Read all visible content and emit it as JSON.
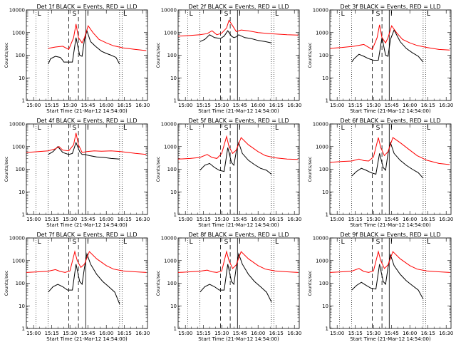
{
  "figure": {
    "time_ticks": [
      "15:00",
      "15:15",
      "15:30",
      "15:45",
      "16:00",
      "16:15",
      "16:30"
    ],
    "y_ticks": [
      "1",
      "10",
      "100",
      "1000",
      "10000"
    ],
    "ylabel": "Counts/sec",
    "xlabel": "Start Time (21-Mar-12 14:54:00)",
    "markers": [
      "L",
      "S",
      "I",
      "L"
    ],
    "colors": {
      "events": "#000000",
      "lld": "#ff0000"
    }
  },
  "chart_data": [
    {
      "type": "line",
      "title": "Det 1f BLACK = Events, RED = LLD",
      "xlabel": "Start Time (21-Mar-12 14:54:00)",
      "ylabel": "Counts/sec",
      "ylim": [
        1,
        10000
      ],
      "yscale": "log",
      "x_range_min": [
        0,
        100
      ],
      "markers_min": {
        "L_start": 8,
        "dotted": 18,
        "dashed_1": 35,
        "dashed_2": 43,
        "solid": 49,
        "dotted_2": 77,
        "L_end": 79
      },
      "series": [
        {
          "name": "Events",
          "color": "#000000",
          "x": [
            18,
            20,
            24,
            28,
            30,
            31,
            38,
            41,
            44,
            46,
            48,
            50,
            53,
            57,
            62,
            66,
            70,
            74,
            77
          ],
          "y": [
            40,
            70,
            90,
            80,
            60,
            50,
            50,
            600,
            100,
            90,
            500,
            1200,
            400,
            250,
            150,
            120,
            100,
            80,
            40
          ]
        },
        {
          "name": "LLD",
          "color": "#ff0000",
          "x": [
            18,
            24,
            30,
            35,
            39,
            41,
            43,
            46,
            48,
            51,
            55,
            60,
            66,
            72,
            80,
            90,
            99
          ],
          "y": [
            200,
            230,
            250,
            180,
            600,
            2400,
            600,
            350,
            600,
            2000,
            1000,
            500,
            350,
            260,
            210,
            180,
            160
          ]
        }
      ]
    },
    {
      "type": "line",
      "title": "Det 2f BLACK = Events, RED = LLD",
      "xlabel": "Start Time (21-Mar-12 14:54:00)",
      "ylabel": "Counts/sec",
      "ylim": [
        1,
        10000
      ],
      "yscale": "log",
      "x_range_min": [
        0,
        100
      ],
      "markers_min": {
        "L_start": 8,
        "dotted": 18,
        "dashed_1": 35,
        "dashed_2": 43,
        "solid": 49,
        "dotted_2": 77,
        "L_end": 79
      },
      "series": [
        {
          "name": "Events",
          "color": "#000000",
          "x": [
            18,
            22,
            26,
            30,
            35,
            38,
            41,
            44,
            46,
            48,
            50,
            55,
            60,
            66,
            72,
            77
          ],
          "y": [
            400,
            500,
            800,
            600,
            550,
            700,
            1200,
            700,
            600,
            650,
            800,
            600,
            550,
            450,
            400,
            350
          ]
        },
        {
          "name": "LLD",
          "color": "#ff0000",
          "x": [
            0,
            10,
            18,
            24,
            28,
            32,
            36,
            40,
            42,
            45,
            48,
            52,
            58,
            66,
            76,
            90,
            99
          ],
          "y": [
            700,
            750,
            800,
            900,
            1200,
            800,
            950,
            1600,
            3500,
            2000,
            1100,
            1300,
            1200,
            1000,
            900,
            800,
            780
          ]
        }
      ]
    },
    {
      "type": "line",
      "title": "Det 3f BLACK = Events, RED = LLD",
      "xlabel": "Start Time (21-Mar-12 14:54:00)",
      "ylabel": "Counts/sec",
      "ylim": [
        1,
        10000
      ],
      "yscale": "log",
      "x_range_min": [
        0,
        100
      ],
      "markers_min": {
        "L_start": 8,
        "dotted": 18,
        "dashed_1": 35,
        "dashed_2": 43,
        "solid": 49,
        "dotted_2": 77,
        "L_end": 79
      },
      "series": [
        {
          "name": "Events",
          "color": "#000000",
          "x": [
            18,
            20,
            24,
            28,
            32,
            36,
            40,
            43,
            46,
            48,
            50,
            53,
            58,
            63,
            68,
            73,
            77
          ],
          "y": [
            50,
            70,
            110,
            90,
            70,
            60,
            60,
            600,
            100,
            90,
            500,
            1300,
            400,
            200,
            130,
            90,
            50
          ]
        },
        {
          "name": "LLD",
          "color": "#ff0000",
          "x": [
            0,
            10,
            20,
            28,
            35,
            39,
            41,
            43,
            46,
            48,
            51,
            55,
            60,
            66,
            72,
            80,
            90,
            99
          ],
          "y": [
            200,
            220,
            250,
            300,
            180,
            600,
            2200,
            600,
            350,
            600,
            2000,
            1000,
            500,
            350,
            270,
            220,
            180,
            170
          ]
        }
      ]
    },
    {
      "type": "line",
      "title": "Det 4f BLACK = Events, RED = LLD",
      "xlabel": "Start Time (21-Mar-12 14:54:00)",
      "ylabel": "Counts/sec",
      "ylim": [
        1,
        10000
      ],
      "yscale": "log",
      "x_range_min": [
        0,
        100
      ],
      "markers_min": {
        "L_start": 8,
        "dotted": 18,
        "dashed_1": 35,
        "dashed_2": 43,
        "solid": 49,
        "dotted_2": 77,
        "L_end": 79
      },
      "series": [
        {
          "name": "Events",
          "color": "#000000",
          "x": [
            18,
            22,
            26,
            30,
            35,
            38,
            41,
            44,
            46,
            48,
            52,
            58,
            64,
            70,
            77
          ],
          "y": [
            450,
            600,
            1000,
            550,
            450,
            500,
            1500,
            600,
            450,
            450,
            400,
            350,
            330,
            300,
            280
          ]
        },
        {
          "name": "LLD",
          "color": "#ff0000",
          "x": [
            0,
            10,
            18,
            24,
            27,
            30,
            35,
            39,
            41,
            43,
            46,
            50,
            56,
            62,
            70,
            78,
            90,
            99
          ],
          "y": [
            550,
            600,
            650,
            800,
            1000,
            700,
            650,
            1200,
            4000,
            1200,
            550,
            600,
            650,
            620,
            650,
            600,
            500,
            450
          ]
        }
      ]
    },
    {
      "type": "line",
      "title": "Det 5f BLACK = Events, RED = LLD",
      "xlabel": "Start Time (21-Mar-12 14:54:00)",
      "ylabel": "Counts/sec",
      "ylim": [
        1,
        10000
      ],
      "yscale": "log",
      "x_range_min": [
        0,
        100
      ],
      "markers_min": {
        "L_start": 8,
        "dotted": 18,
        "dashed_1": 35,
        "dashed_2": 43,
        "solid": 49,
        "dotted_2": 77,
        "L_end": 79
      },
      "series": [
        {
          "name": "Events",
          "color": "#000000",
          "x": [
            18,
            22,
            26,
            30,
            34,
            38,
            41,
            44,
            46,
            48,
            50,
            53,
            58,
            63,
            68,
            73,
            77
          ],
          "y": [
            90,
            150,
            180,
            120,
            90,
            80,
            900,
            200,
            150,
            600,
            1500,
            500,
            250,
            160,
            110,
            90,
            60
          ]
        },
        {
          "name": "LLD",
          "color": "#ff0000",
          "x": [
            0,
            10,
            18,
            24,
            28,
            32,
            36,
            40,
            42,
            45,
            48,
            52,
            58,
            66,
            72,
            80,
            90,
            99
          ],
          "y": [
            280,
            300,
            330,
            450,
            330,
            300,
            500,
            2800,
            1000,
            500,
            700,
            2500,
            1200,
            600,
            400,
            320,
            280,
            270
          ]
        }
      ]
    },
    {
      "type": "line",
      "title": "Det 6f BLACK = Events, RED = LLD",
      "xlabel": "Start Time (21-Mar-12 14:54:00)",
      "ylabel": "Counts/sec",
      "ylim": [
        1,
        10000
      ],
      "yscale": "log",
      "x_range_min": [
        0,
        100
      ],
      "markers_min": {
        "L_start": 8,
        "dotted": 18,
        "dashed_1": 35,
        "dashed_2": 43,
        "solid": 49,
        "dotted_2": 77,
        "L_end": 79
      },
      "series": [
        {
          "name": "Events",
          "color": "#000000",
          "x": [
            18,
            22,
            26,
            30,
            34,
            38,
            41,
            44,
            46,
            48,
            50,
            53,
            58,
            63,
            68,
            73,
            77
          ],
          "y": [
            50,
            80,
            110,
            90,
            70,
            60,
            500,
            120,
            90,
            500,
            1500,
            500,
            250,
            150,
            100,
            70,
            40
          ]
        },
        {
          "name": "LLD",
          "color": "#ff0000",
          "x": [
            0,
            10,
            18,
            24,
            28,
            32,
            36,
            40,
            42,
            45,
            48,
            52,
            58,
            66,
            72,
            80,
            90,
            99
          ],
          "y": [
            200,
            220,
            230,
            280,
            240,
            230,
            350,
            2500,
            900,
            400,
            600,
            2500,
            1500,
            700,
            400,
            250,
            180,
            160
          ]
        }
      ]
    },
    {
      "type": "line",
      "title": "Det 7f BLACK = Events, RED = LLD",
      "xlabel": "Start Time (21-Mar-12 14:54:00)",
      "ylabel": "Counts/sec",
      "ylim": [
        1,
        10000
      ],
      "yscale": "log",
      "x_range_min": [
        0,
        100
      ],
      "markers_min": {
        "L_start": 8,
        "dotted": 18,
        "dashed_1": 35,
        "dashed_2": 43,
        "solid": 49,
        "dotted_2": 77,
        "L_end": 79
      },
      "series": [
        {
          "name": "Events",
          "color": "#000000",
          "x": [
            18,
            22,
            26,
            30,
            34,
            38,
            41,
            44,
            46,
            48,
            50,
            53,
            58,
            63,
            68,
            73,
            77
          ],
          "y": [
            40,
            70,
            90,
            70,
            50,
            50,
            700,
            120,
            90,
            500,
            2000,
            700,
            250,
            120,
            70,
            40,
            12
          ]
        },
        {
          "name": "LLD",
          "color": "#ff0000",
          "x": [
            0,
            10,
            18,
            24,
            28,
            32,
            36,
            40,
            42,
            45,
            48,
            52,
            58,
            66,
            72,
            80,
            90,
            99
          ],
          "y": [
            300,
            320,
            340,
            400,
            330,
            300,
            350,
            2500,
            1000,
            500,
            700,
            2500,
            1200,
            600,
            420,
            350,
            320,
            300
          ]
        }
      ]
    },
    {
      "type": "line",
      "title": "Det 8f BLACK = Events, RED = LLD",
      "xlabel": "Start Time (21-Mar-12 14:54:00)",
      "ylabel": "Counts/sec",
      "ylim": [
        1,
        10000
      ],
      "yscale": "log",
      "x_range_min": [
        0,
        100
      ],
      "markers_min": {
        "L_start": 8,
        "dotted": 18,
        "dashed_1": 35,
        "dashed_2": 43,
        "solid": 49,
        "dotted_2": 77,
        "L_end": 79
      },
      "series": [
        {
          "name": "Events",
          "color": "#000000",
          "x": [
            18,
            22,
            26,
            30,
            34,
            38,
            41,
            44,
            46,
            48,
            50,
            53,
            58,
            63,
            68,
            73,
            77
          ],
          "y": [
            40,
            70,
            90,
            70,
            50,
            50,
            700,
            120,
            90,
            500,
            2000,
            700,
            250,
            120,
            70,
            40,
            15
          ]
        },
        {
          "name": "LLD",
          "color": "#ff0000",
          "x": [
            0,
            10,
            18,
            24,
            28,
            32,
            36,
            40,
            42,
            45,
            48,
            52,
            58,
            66,
            72,
            80,
            90,
            99
          ],
          "y": [
            300,
            320,
            340,
            380,
            320,
            300,
            350,
            2500,
            1000,
            450,
            650,
            2500,
            1200,
            600,
            420,
            350,
            320,
            300
          ]
        }
      ]
    },
    {
      "type": "line",
      "title": "Det 9f BLACK = Events, RED = LLD",
      "xlabel": "Start Time (21-Mar-12 14:54:00)",
      "ylabel": "Counts/sec",
      "ylim": [
        1,
        10000
      ],
      "yscale": "log",
      "x_range_min": [
        0,
        100
      ],
      "markers_min": {
        "L_start": 8,
        "dotted": 18,
        "dashed_1": 35,
        "dashed_2": 43,
        "solid": 49,
        "dotted_2": 77,
        "L_end": 79
      },
      "series": [
        {
          "name": "Events",
          "color": "#000000",
          "x": [
            18,
            22,
            26,
            30,
            34,
            38,
            41,
            44,
            46,
            48,
            50,
            53,
            58,
            63,
            68,
            73,
            77
          ],
          "y": [
            50,
            80,
            110,
            80,
            60,
            55,
            700,
            120,
            90,
            500,
            1800,
            600,
            250,
            130,
            80,
            50,
            20
          ]
        },
        {
          "name": "LLD",
          "color": "#ff0000",
          "x": [
            0,
            10,
            18,
            24,
            28,
            32,
            36,
            40,
            42,
            45,
            48,
            52,
            58,
            66,
            72,
            80,
            90,
            99
          ],
          "y": [
            300,
            320,
            340,
            450,
            330,
            300,
            350,
            2500,
            1000,
            450,
            650,
            2500,
            1200,
            600,
            420,
            350,
            320,
            300
          ]
        }
      ]
    }
  ]
}
